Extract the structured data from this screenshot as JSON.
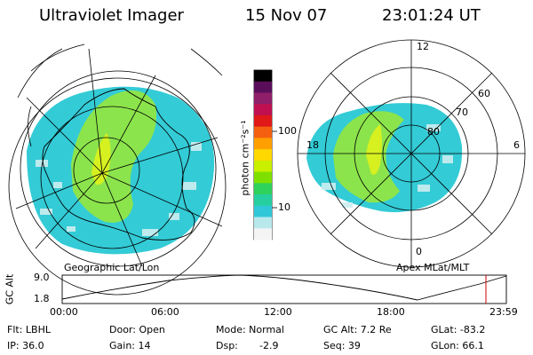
{
  "header": {
    "instrument": "Ultraviolet Imager",
    "date": "15 Nov 07",
    "time": "23:01:24 UT"
  },
  "left_panel": {
    "label": "Geographic Lat/Lon"
  },
  "right_panel": {
    "label": "Apex MLat/MLT",
    "mlt_labels": {
      "top": "12",
      "left": "18",
      "right": "6",
      "bottom": "0"
    },
    "mlat_labels": [
      "60",
      "70",
      "80"
    ]
  },
  "colorbar": {
    "unit_label": "photon cm⁻²s⁻¹",
    "scale": "log",
    "ticks": [
      "100",
      "10"
    ],
    "colors": [
      "#000000",
      "#5a0e5a",
      "#8f1f6a",
      "#c01050",
      "#e01818",
      "#f46010",
      "#ffa000",
      "#ffd800",
      "#c8f000",
      "#7fe000",
      "#2fd25a",
      "#25cfa0",
      "#30c8d8",
      "#b8e8ec",
      "#f4f4f4"
    ]
  },
  "altitude_plot": {
    "ylabel": "GC Alt",
    "yticks": [
      "9.0",
      "1.8"
    ],
    "xticks": [
      "00:00",
      "06:00",
      "12:00",
      "18:00",
      "23:59"
    ],
    "current_time_color": "#d00000"
  },
  "footer": {
    "flt": "Flt: LBHL",
    "ip": "IP: 36.0",
    "door": "Door: Open",
    "gain": "Gain: 14",
    "mode": "Mode: Normal",
    "dsp": "Dsp:",
    "dsp_value": "-2.9",
    "gc_alt": "GC Alt: 7.2 Re",
    "seq": "Seq: 39",
    "glat": "GLat: -83.2",
    "glon": "GLon: 66.1"
  }
}
